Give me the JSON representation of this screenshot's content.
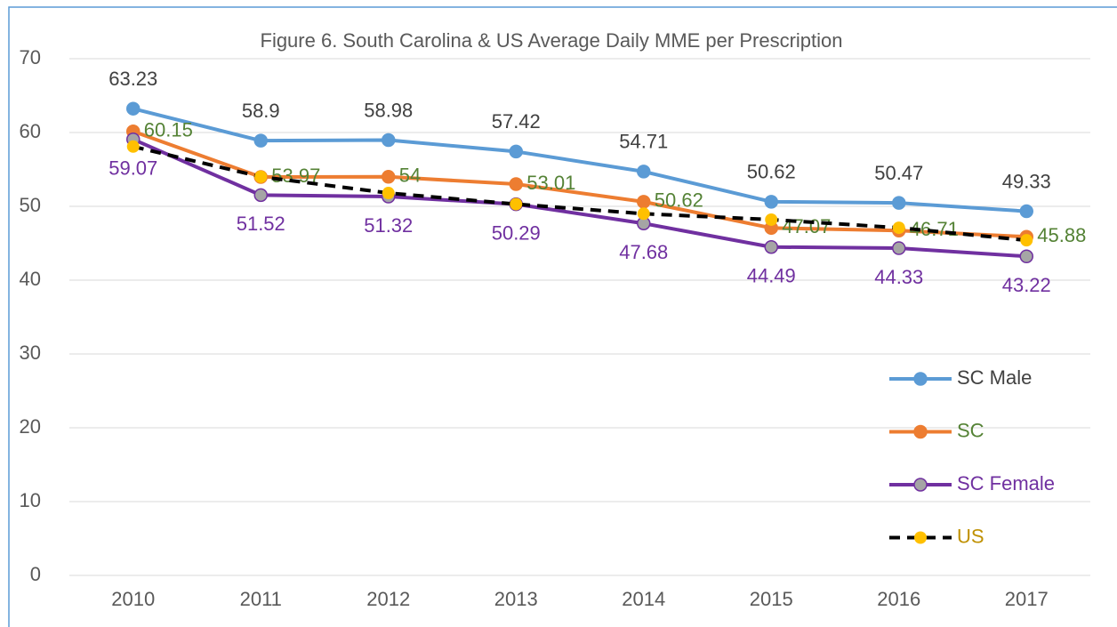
{
  "chart_data": {
    "type": "line",
    "title": "Figure 6. South Carolina & US Average Daily MME per Prescription",
    "categories": [
      "2010",
      "2011",
      "2012",
      "2013",
      "2014",
      "2015",
      "2016",
      "2017"
    ],
    "ylim": [
      0,
      70
    ],
    "yticks": [
      0,
      10,
      20,
      30,
      40,
      50,
      60,
      70
    ],
    "grid": true,
    "legend": "right",
    "series": [
      {
        "name": "SC Male",
        "color": "#5b9bd5",
        "marker_color": "#5b9bd5",
        "label_color": "#404040",
        "label_position": "above",
        "legend_text_color": "#404040",
        "values": [
          63.23,
          58.9,
          58.98,
          57.42,
          54.71,
          50.62,
          50.47,
          49.33
        ]
      },
      {
        "name": "SC",
        "color": "#ed7d31",
        "marker_color": "#ed7d31",
        "label_color": "#548235",
        "label_position": "right",
        "legend_text_color": "#548235",
        "values": [
          60.15,
          53.97,
          54,
          53.01,
          50.62,
          47.07,
          46.71,
          45.88
        ]
      },
      {
        "name": "SC Female",
        "color": "#7030a0",
        "marker_color": "#a5a5a5",
        "label_color": "#7030a0",
        "label_position": "below",
        "legend_text_color": "#7030a0",
        "values": [
          59.07,
          51.52,
          51.32,
          50.29,
          47.68,
          44.49,
          44.33,
          43.22
        ]
      },
      {
        "name": "US",
        "color": "#000000",
        "marker_color": "#ffc000",
        "dash": true,
        "legend_text_color": "#bf9000",
        "values": [
          58.1,
          54.0,
          51.8,
          50.3,
          49.0,
          48.2,
          47.1,
          45.4
        ]
      }
    ]
  }
}
